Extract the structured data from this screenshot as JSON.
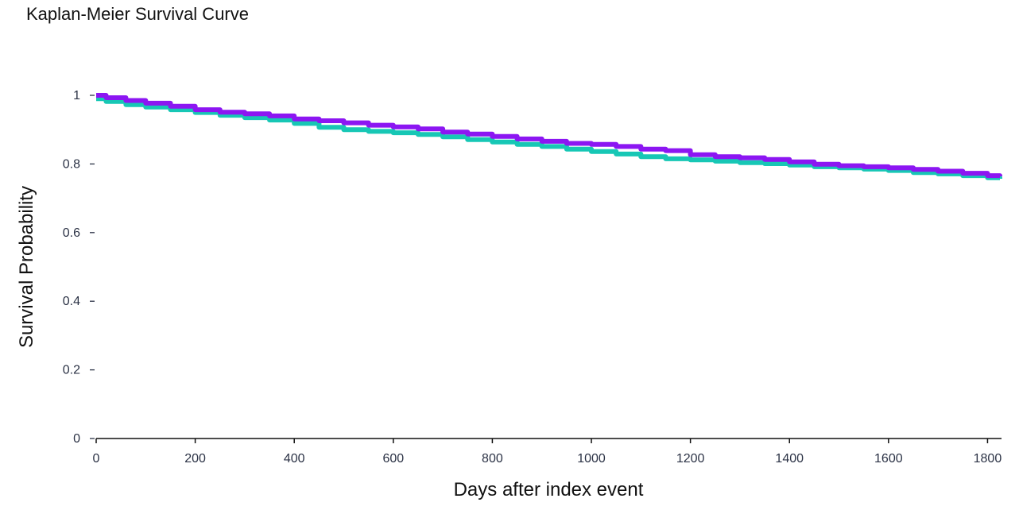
{
  "chart_data": {
    "type": "line",
    "title": "Kaplan-Meier Survival Curve",
    "xlabel": "Days after index event",
    "ylabel": "Survival Probability",
    "xlim": [
      0,
      1825
    ],
    "ylim": [
      0,
      1
    ],
    "x_ticks": [
      0,
      200,
      400,
      600,
      800,
      1000,
      1200,
      1400,
      1600,
      1800
    ],
    "y_ticks": [
      0,
      0.2,
      0.4,
      0.6,
      0.8,
      1
    ],
    "y_tick_labels": [
      "0",
      "0.2",
      "0.4",
      "0.6",
      "0.8",
      "1"
    ],
    "grid": false,
    "legend": "none",
    "series": [
      {
        "color": "#8c16f2",
        "x": [
          0,
          20,
          60,
          100,
          150,
          200,
          250,
          300,
          350,
          400,
          450,
          500,
          550,
          600,
          650,
          700,
          750,
          800,
          850,
          900,
          950,
          1000,
          1050,
          1100,
          1150,
          1200,
          1250,
          1300,
          1350,
          1400,
          1450,
          1500,
          1550,
          1600,
          1650,
          1700,
          1750,
          1800,
          1825
        ],
        "y": [
          1.0,
          0.993,
          0.985,
          0.977,
          0.968,
          0.958,
          0.951,
          0.946,
          0.94,
          0.931,
          0.926,
          0.92,
          0.913,
          0.908,
          0.902,
          0.893,
          0.887,
          0.88,
          0.873,
          0.866,
          0.86,
          0.857,
          0.851,
          0.843,
          0.839,
          0.827,
          0.821,
          0.818,
          0.813,
          0.806,
          0.799,
          0.795,
          0.792,
          0.789,
          0.784,
          0.779,
          0.773,
          0.766,
          0.764
        ]
      },
      {
        "color": "#17c7b5",
        "x": [
          0,
          20,
          60,
          100,
          150,
          200,
          250,
          300,
          350,
          400,
          450,
          500,
          550,
          600,
          650,
          700,
          750,
          800,
          850,
          900,
          950,
          1000,
          1050,
          1100,
          1150,
          1200,
          1250,
          1300,
          1350,
          1400,
          1450,
          1500,
          1550,
          1600,
          1650,
          1700,
          1750,
          1800,
          1825
        ],
        "y": [
          0.99,
          0.982,
          0.973,
          0.966,
          0.958,
          0.95,
          0.942,
          0.935,
          0.928,
          0.918,
          0.907,
          0.9,
          0.895,
          0.891,
          0.886,
          0.879,
          0.871,
          0.864,
          0.857,
          0.851,
          0.843,
          0.836,
          0.829,
          0.821,
          0.815,
          0.812,
          0.808,
          0.804,
          0.801,
          0.797,
          0.792,
          0.789,
          0.785,
          0.781,
          0.775,
          0.771,
          0.766,
          0.76,
          0.757
        ]
      }
    ]
  }
}
